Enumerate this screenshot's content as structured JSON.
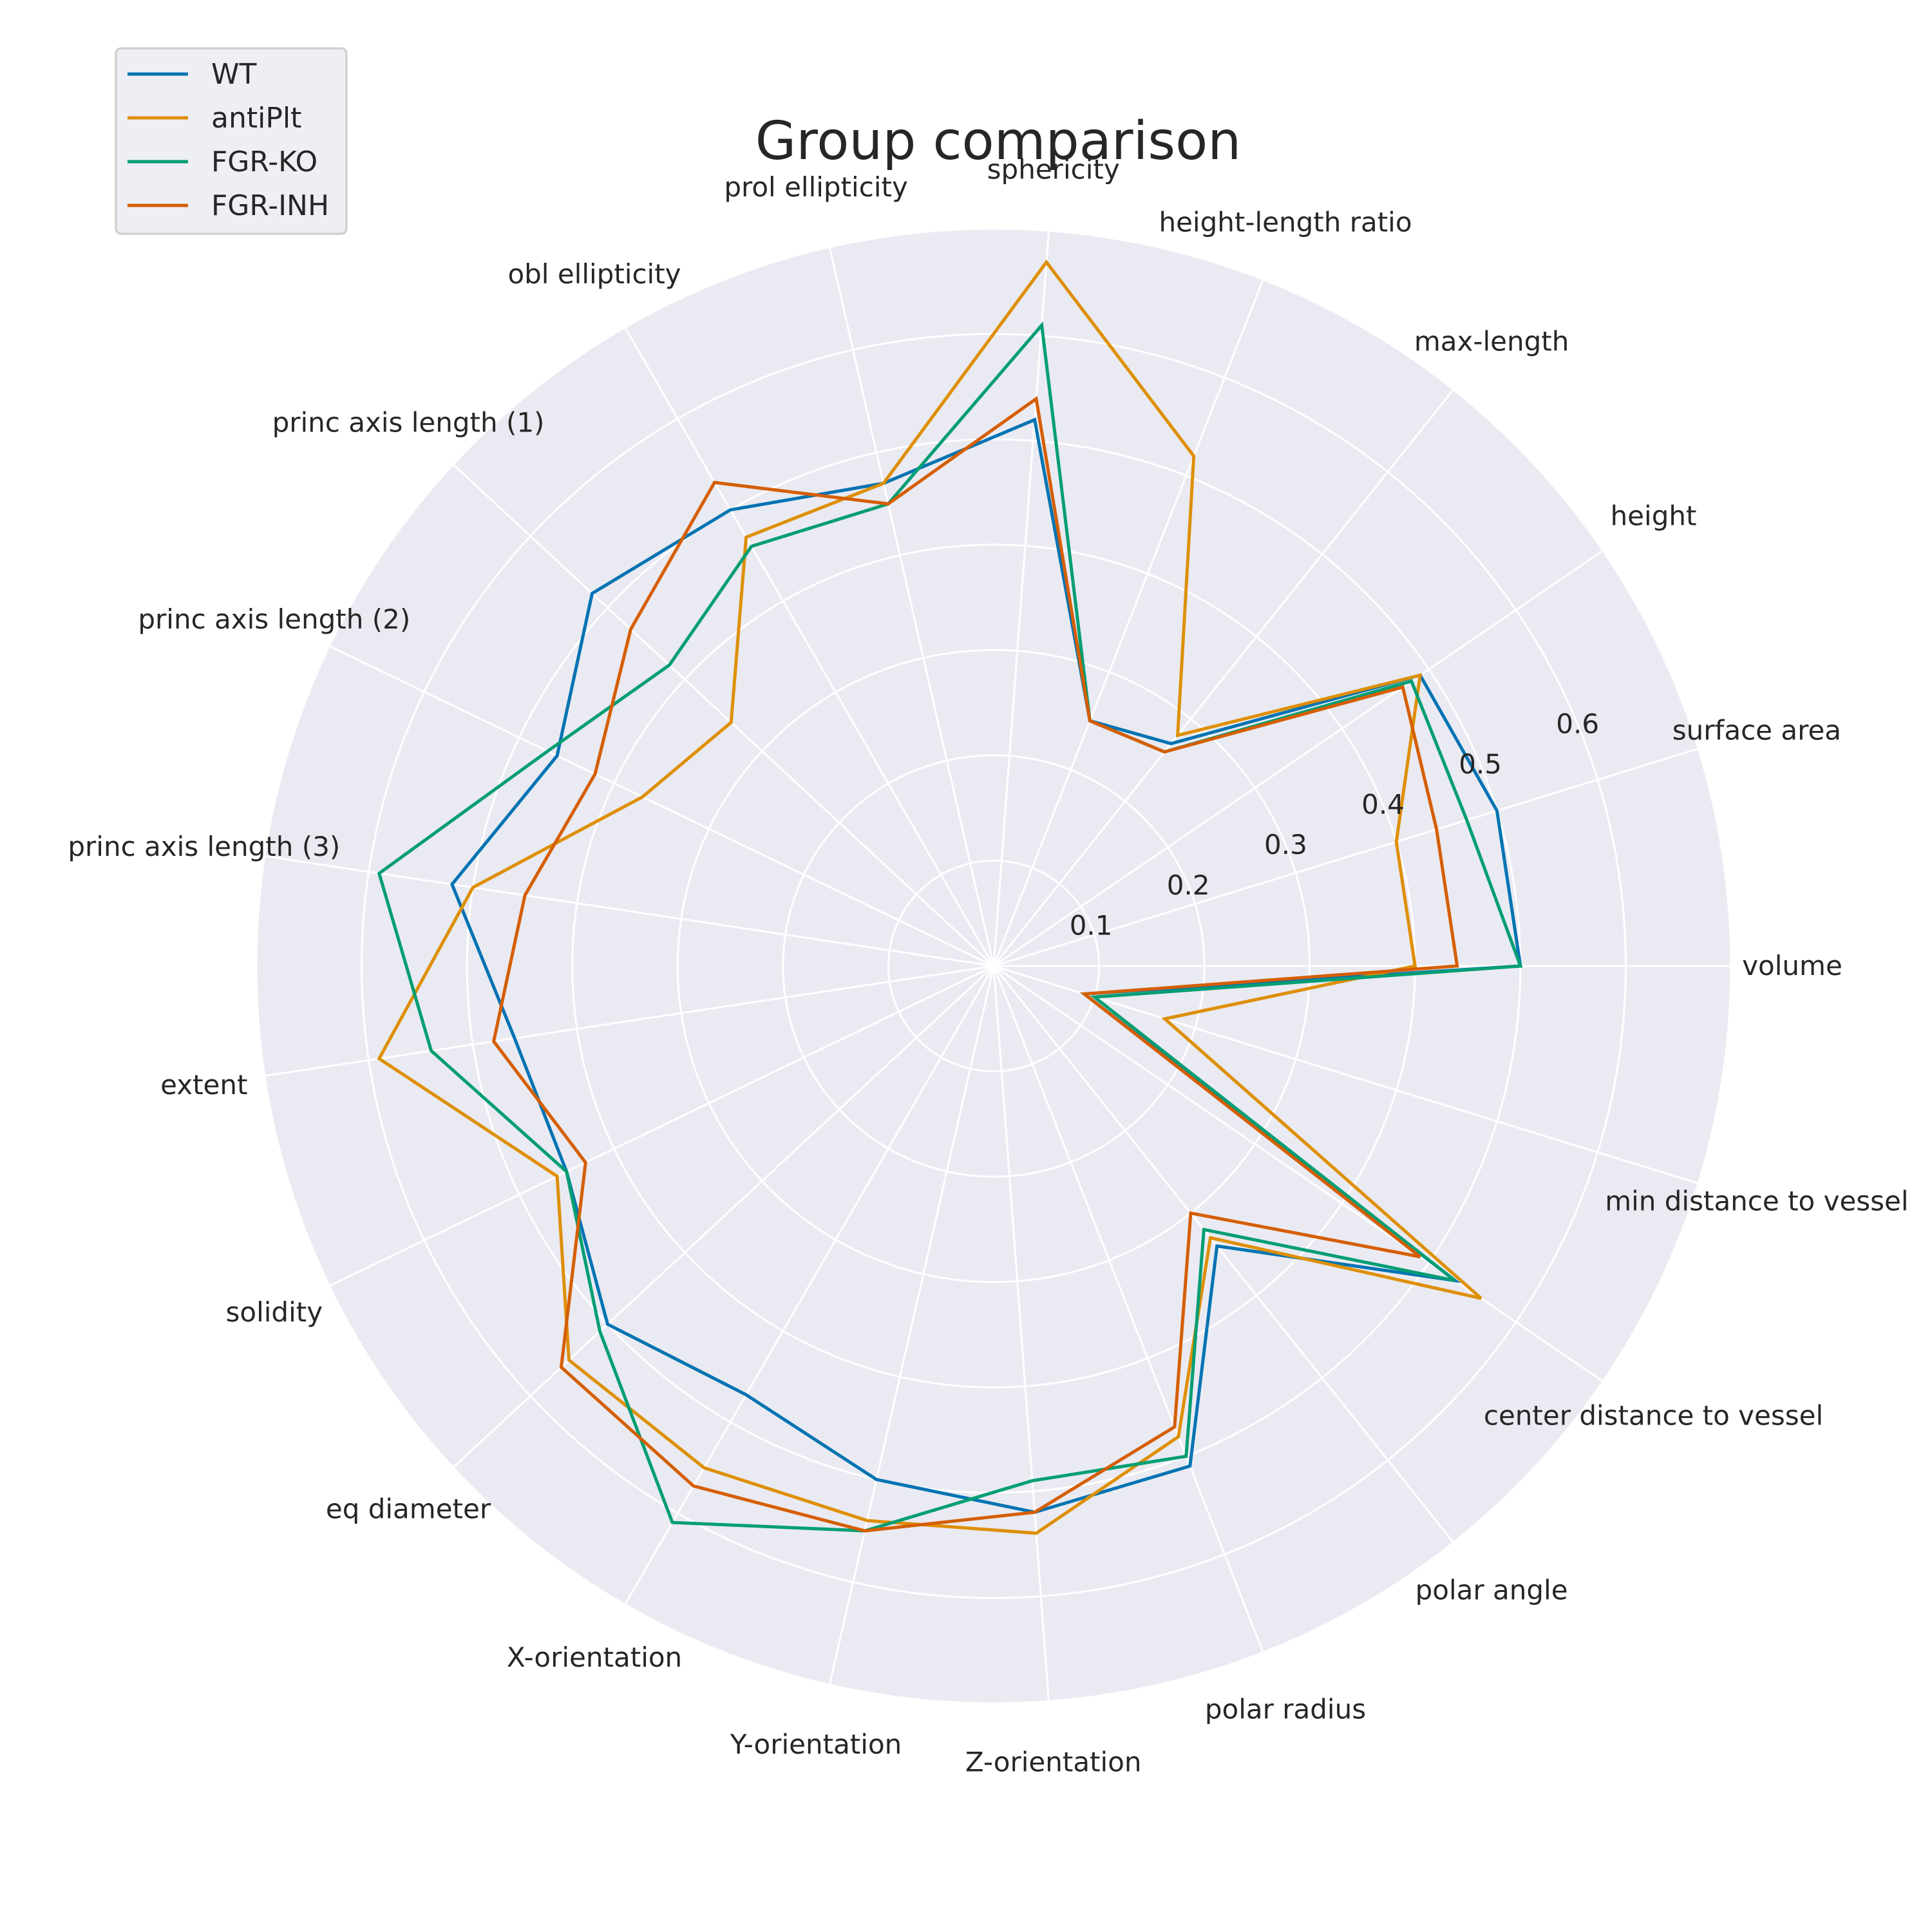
{
  "chart_data": {
    "type": "radar",
    "title": "Group comparison",
    "categories": [
      "volume",
      "surface area",
      "height",
      "max-length",
      "height-length ratio",
      "sphericity",
      "prol ellipticity",
      "obl ellipticity",
      "princ axis length (1)",
      "princ axis length (2)",
      "princ axis length (3)",
      "extent",
      "solidity",
      "eq diameter",
      "X-orientation",
      "Y-orientation",
      "Z-orientation",
      "polar radius",
      "polar angle",
      "center distance to vessel",
      "min distance to vessel"
    ],
    "r_ticks": [
      "0.1",
      "0.2",
      "0.3",
      "0.4",
      "0.5",
      "0.6"
    ],
    "r_tick_values": [
      0.1,
      0.2,
      0.3,
      0.4,
      0.5,
      0.6
    ],
    "r_max": 0.7,
    "grid": true,
    "legend_position": "top-left",
    "series": [
      {
        "name": "WT",
        "color": "#0173b2",
        "values": [
          0.5,
          0.5,
          0.49,
          0.27,
          0.25,
          0.52,
          0.47,
          0.5,
          0.52,
          0.46,
          0.52,
          0.46,
          0.45,
          0.5,
          0.47,
          0.5,
          0.52,
          0.51,
          0.34,
          0.53,
          0.09
        ]
      },
      {
        "name": "antiPlt",
        "color": "#de8f05",
        "values": [
          0.4,
          0.4,
          0.49,
          0.28,
          0.52,
          0.67,
          0.47,
          0.47,
          0.34,
          0.37,
          0.5,
          0.59,
          0.46,
          0.55,
          0.55,
          0.54,
          0.54,
          0.48,
          0.33,
          0.56,
          0.17
        ]
      },
      {
        "name": "FGR-KO",
        "color": "#029e73",
        "values": [
          0.5,
          0.47,
          0.48,
          0.26,
          0.25,
          0.61,
          0.45,
          0.46,
          0.42,
          0.47,
          0.59,
          0.54,
          0.45,
          0.51,
          0.61,
          0.55,
          0.49,
          0.5,
          0.32,
          0.53,
          0.1
        ]
      },
      {
        "name": "FGR-INH",
        "color": "#d55e00",
        "values": [
          0.44,
          0.44,
          0.47,
          0.26,
          0.25,
          0.54,
          0.45,
          0.53,
          0.47,
          0.42,
          0.45,
          0.48,
          0.43,
          0.56,
          0.57,
          0.55,
          0.52,
          0.47,
          0.3,
          0.49,
          0.09
        ]
      }
    ]
  }
}
